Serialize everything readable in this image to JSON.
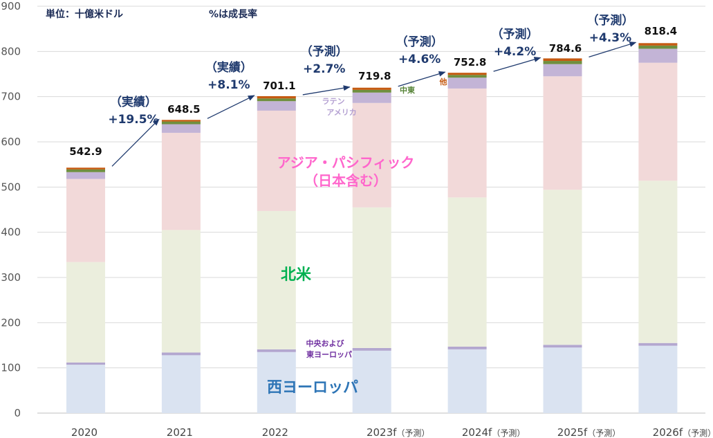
{
  "chart_data": {
    "type": "bar",
    "stacked": true,
    "unit_label": "単位：十億米ドル",
    "growth_note": "%は成長率",
    "categories": [
      "2020",
      "2021",
      "2022",
      "2023f",
      "2024f",
      "2025f",
      "2026f"
    ],
    "category_suffix": [
      "",
      "",
      "",
      "（予測）",
      "（予測）",
      "（予測）",
      "（予測）"
    ],
    "ylim": [
      0,
      900
    ],
    "yticks": [
      0,
      100,
      200,
      300,
      400,
      500,
      600,
      700,
      800,
      900
    ],
    "grid": true,
    "totals": [
      "542.9",
      "648.5",
      "701.1",
      "719.8",
      "752.8",
      "784.6",
      "818.4"
    ],
    "series": [
      {
        "name": "西ヨーロッパ",
        "color": "#dae3f1",
        "values": [
          107,
          128,
          135,
          138,
          141,
          145,
          149
        ]
      },
      {
        "name": "中央および東ヨーロッパ",
        "color": "#b3a7cf",
        "values": [
          5,
          6,
          6,
          6,
          6,
          6,
          6
        ]
      },
      {
        "name": "北米",
        "color": "#ebeedd",
        "values": [
          222,
          271,
          306,
          311,
          330,
          343,
          359
        ]
      },
      {
        "name": "アジア・パシフィック（日本含む）",
        "color": "#f2d9d9",
        "values": [
          184,
          215,
          222,
          231,
          241,
          251,
          261
        ]
      },
      {
        "name": "ラテンアメリカ",
        "color": "#c3b4d6",
        "values": [
          15,
          19,
          21,
          23,
          24,
          27,
          31
        ]
      },
      {
        "name": "中東",
        "color": "#6f8f3f",
        "values": [
          6,
          6,
          6,
          6,
          6,
          7,
          7
        ]
      },
      {
        "name": "他",
        "color": "#c55a11",
        "values": [
          3.9,
          3.5,
          5.1,
          4.8,
          4.8,
          5.6,
          5.4
        ]
      }
    ],
    "growth": [
      {
        "status": "（実績）",
        "rate": "+19.5%"
      },
      {
        "status": "（実績）",
        "rate": "+8.1%"
      },
      {
        "status": "（予測）",
        "rate": "+2.7%"
      },
      {
        "status": "（予測）",
        "rate": "+4.6%"
      },
      {
        "status": "（予測）",
        "rate": "+4.2%"
      },
      {
        "status": "（予測）",
        "rate": "+4.3%"
      }
    ],
    "region_labels": {
      "western_europe": "西ヨーロッパ",
      "ce_europe_line1": "中央および",
      "ce_europe_line2": "東ヨーロッパ",
      "north_america": "北米",
      "apac_line1": "アジア・パシフィック",
      "apac_line2": "（日本含む）",
      "latam_line1": "ラテン",
      "latam_line2": "アメリカ",
      "middle_east": "中東",
      "other": "他"
    },
    "colors": {
      "western_europe_text": "#2e75b6",
      "ce_europe_text": "#7030a0",
      "north_america_text": "#00b050",
      "apac_text": "#ff66cc",
      "latam_text": "#b4a0d2",
      "middle_east_text": "#548235",
      "other_text": "#c55a11",
      "arrow": "#1f3a6e"
    }
  }
}
